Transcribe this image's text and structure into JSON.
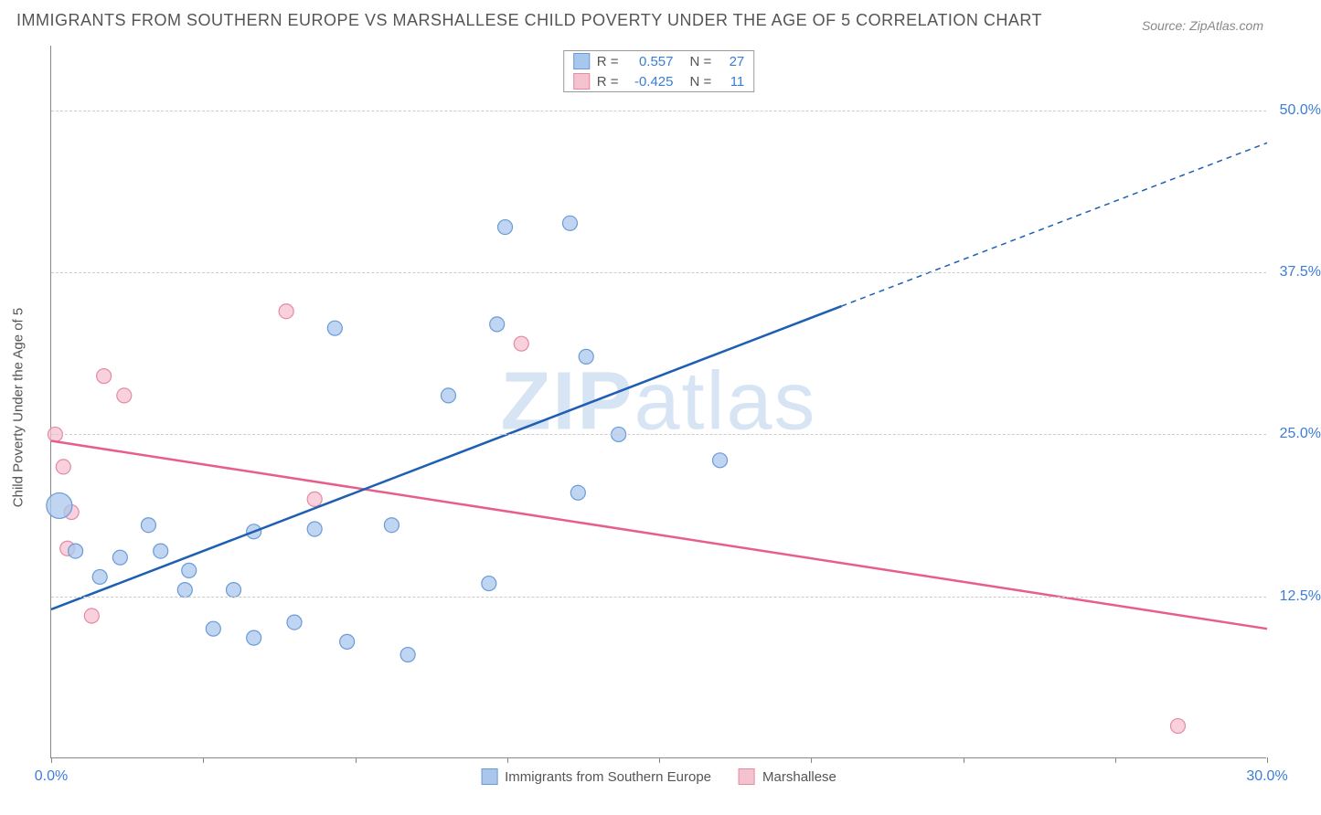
{
  "title": "IMMIGRANTS FROM SOUTHERN EUROPE VS MARSHALLESE CHILD POVERTY UNDER THE AGE OF 5 CORRELATION CHART",
  "source": "Source: ZipAtlas.com",
  "y_axis_label": "Child Poverty Under the Age of 5",
  "watermark_bold": "ZIP",
  "watermark_rest": "atlas",
  "colors": {
    "series1_fill": "#a9c7ec",
    "series1_stroke": "#6a9bd8",
    "series1_line": "#1e5fb4",
    "series2_fill": "#f5c2d0",
    "series2_stroke": "#e48aa4",
    "series2_line": "#e75e8a",
    "axis_text": "#3b7dd8",
    "grid": "#cccccc"
  },
  "xlim": [
    0,
    30
  ],
  "ylim": [
    0,
    55
  ],
  "x_ticks": [
    0,
    3.75,
    7.5,
    11.25,
    15,
    18.75,
    22.5,
    26.25,
    30
  ],
  "x_tick_labels": {
    "0": "0.0%",
    "30": "30.0%"
  },
  "y_grid": [
    12.5,
    25.0,
    37.5,
    50.0
  ],
  "y_tick_labels": [
    "12.5%",
    "25.0%",
    "37.5%",
    "50.0%"
  ],
  "legend_top": [
    {
      "swatch_fill": "#a9c7ec",
      "swatch_stroke": "#6a9bd8",
      "r_label": "R =",
      "r_value": "0.557",
      "n_label": "N =",
      "n_value": "27"
    },
    {
      "swatch_fill": "#f5c2d0",
      "swatch_stroke": "#e48aa4",
      "r_label": "R =",
      "r_value": "-0.425",
      "n_label": "N =",
      "n_value": "11"
    }
  ],
  "legend_bottom": [
    {
      "swatch_fill": "#a9c7ec",
      "swatch_stroke": "#6a9bd8",
      "label": "Immigrants from Southern Europe"
    },
    {
      "swatch_fill": "#f5c2d0",
      "swatch_stroke": "#e48aa4",
      "label": "Marshallese"
    }
  ],
  "series1_points": [
    {
      "x": 0.2,
      "y": 19.5,
      "r": 14
    },
    {
      "x": 0.6,
      "y": 16.0,
      "r": 8
    },
    {
      "x": 1.2,
      "y": 14.0,
      "r": 8
    },
    {
      "x": 1.7,
      "y": 15.5,
      "r": 8
    },
    {
      "x": 2.4,
      "y": 18.0,
      "r": 8
    },
    {
      "x": 2.7,
      "y": 16.0,
      "r": 8
    },
    {
      "x": 3.4,
      "y": 14.5,
      "r": 8
    },
    {
      "x": 3.3,
      "y": 13.0,
      "r": 8
    },
    {
      "x": 4.0,
      "y": 10.0,
      "r": 8
    },
    {
      "x": 4.5,
      "y": 13.0,
      "r": 8
    },
    {
      "x": 5.0,
      "y": 17.5,
      "r": 8
    },
    {
      "x": 5.0,
      "y": 9.3,
      "r": 8
    },
    {
      "x": 6.0,
      "y": 10.5,
      "r": 8
    },
    {
      "x": 6.5,
      "y": 17.7,
      "r": 8
    },
    {
      "x": 7.0,
      "y": 33.2,
      "r": 8
    },
    {
      "x": 7.3,
      "y": 9.0,
      "r": 8
    },
    {
      "x": 8.4,
      "y": 18.0,
      "r": 8
    },
    {
      "x": 8.8,
      "y": 8.0,
      "r": 8
    },
    {
      "x": 9.8,
      "y": 28.0,
      "r": 8
    },
    {
      "x": 10.8,
      "y": 13.5,
      "r": 8
    },
    {
      "x": 11.0,
      "y": 33.5,
      "r": 8
    },
    {
      "x": 11.2,
      "y": 41.0,
      "r": 8
    },
    {
      "x": 12.8,
      "y": 41.3,
      "r": 8
    },
    {
      "x": 13.0,
      "y": 20.5,
      "r": 8
    },
    {
      "x": 13.2,
      "y": 31.0,
      "r": 8
    },
    {
      "x": 14.0,
      "y": 25.0,
      "r": 8
    },
    {
      "x": 16.5,
      "y": 23.0,
      "r": 8
    }
  ],
  "series2_points": [
    {
      "x": 0.1,
      "y": 25.0,
      "r": 8
    },
    {
      "x": 0.3,
      "y": 22.5,
      "r": 8
    },
    {
      "x": 0.4,
      "y": 16.2,
      "r": 8
    },
    {
      "x": 0.5,
      "y": 19.0,
      "r": 8
    },
    {
      "x": 1.0,
      "y": 11.0,
      "r": 8
    },
    {
      "x": 1.3,
      "y": 29.5,
      "r": 8
    },
    {
      "x": 1.8,
      "y": 28.0,
      "r": 8
    },
    {
      "x": 5.8,
      "y": 34.5,
      "r": 8
    },
    {
      "x": 6.5,
      "y": 20.0,
      "r": 8
    },
    {
      "x": 11.6,
      "y": 32.0,
      "r": 8
    },
    {
      "x": 27.8,
      "y": 2.5,
      "r": 8
    }
  ],
  "trend_lines": {
    "series1": {
      "x1": 0,
      "y1": 11.5,
      "x2": 30,
      "y2": 47.5,
      "solid_until_x": 19.5
    },
    "series2": {
      "x1": 0,
      "y1": 24.5,
      "x2": 30,
      "y2": 10.0
    }
  },
  "marker_opacity": 0.75
}
